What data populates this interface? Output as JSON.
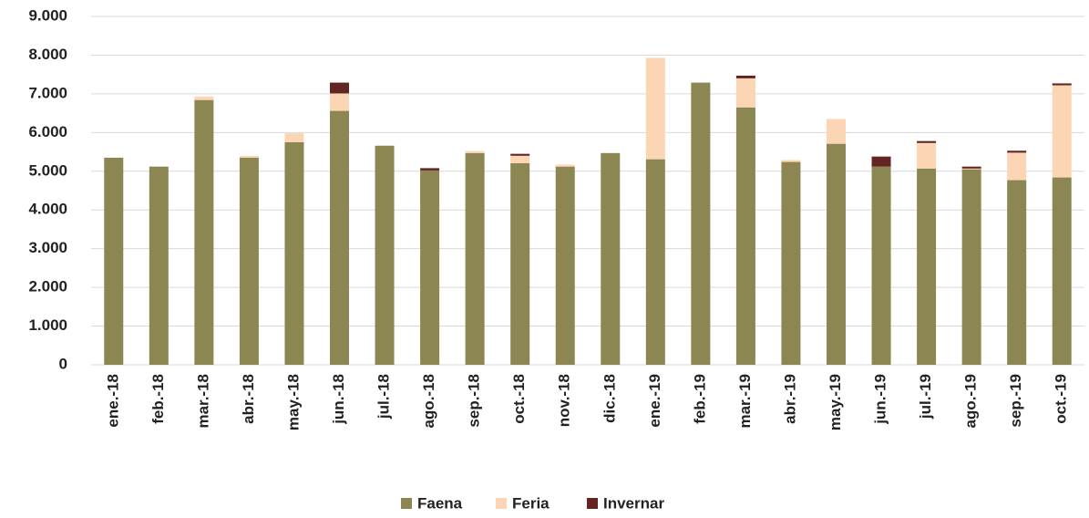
{
  "chart_data": {
    "type": "stacked_bar",
    "categories": [
      "ene.-18",
      "feb.-18",
      "mar.-18",
      "abr.-18",
      "may.-18",
      "jun.-18",
      "jul.-18",
      "ago.-18",
      "sep.-18",
      "oct.-18",
      "nov.-18",
      "dic.-18",
      "ene.-19",
      "feb.-19",
      "mar.-19",
      "abr.-19",
      "may.-19",
      "jun.-19",
      "jul.-19",
      "ago.-19",
      "sep.-19",
      "oct.-19"
    ],
    "series": [
      {
        "name": "Faena",
        "color": "#8c8652",
        "values": [
          5350,
          5120,
          6840,
          5350,
          5750,
          6560,
          5660,
          5020,
          5470,
          5210,
          5120,
          5470,
          5310,
          7290,
          6650,
          5240,
          5710,
          5120,
          5070,
          5050,
          4770,
          4840
        ]
      },
      {
        "name": "Feria",
        "color": "#fcd5b4",
        "values": [
          0,
          0,
          90,
          50,
          230,
          450,
          0,
          0,
          50,
          190,
          50,
          0,
          2620,
          0,
          750,
          50,
          640,
          0,
          660,
          20,
          710,
          2380
        ]
      },
      {
        "name": "Invernar",
        "color": "#632523",
        "values": [
          0,
          0,
          0,
          0,
          0,
          280,
          0,
          60,
          0,
          50,
          0,
          0,
          0,
          0,
          70,
          0,
          0,
          260,
          50,
          50,
          50,
          50
        ]
      }
    ],
    "ylim": [
      0,
      9000
    ],
    "yticks": [
      0,
      {
        "value": 1000,
        "label": "1.000"
      },
      {
        "value": 2000,
        "label": "2.000"
      },
      {
        "value": 3000,
        "label": "3.000"
      },
      {
        "value": 4000,
        "label": "4.000"
      },
      {
        "value": 5000,
        "label": "5.000"
      },
      {
        "value": 6000,
        "label": "6.000"
      },
      {
        "value": 7000,
        "label": "7.000"
      },
      {
        "value": 8000,
        "label": "8.000"
      },
      {
        "value": 9000,
        "label": "9.000"
      }
    ],
    "grid": true,
    "legend": "bottom"
  }
}
